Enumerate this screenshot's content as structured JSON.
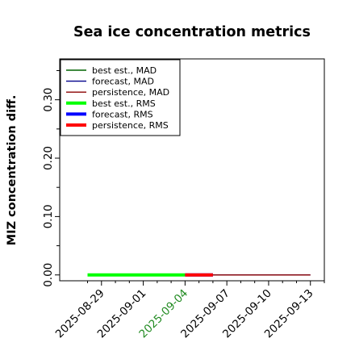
{
  "chart_data": {
    "type": "line",
    "title": "Sea ice concentration metrics",
    "ylabel": "MIZ concentration diff.",
    "xlabel": "",
    "x_ticks": [
      "2025-08-29",
      "2025-09-01",
      "2025-09-04",
      "2025-09-07",
      "2025-09-10",
      "2025-09-13"
    ],
    "x_tick_colors": [
      "#000000",
      "#000000",
      "#228b22",
      "#000000",
      "#000000",
      "#000000"
    ],
    "xlim": [
      "2025-08-26",
      "2025-09-14"
    ],
    "y_ticks": [
      "0.00",
      "0.10",
      "0.20",
      "0.30"
    ],
    "ylim": [
      -0.01,
      0.37
    ],
    "grid": false,
    "legend_position": "top-left",
    "series": [
      {
        "name": "best est., MAD",
        "color": "#006400",
        "width": 1.4,
        "points": [
          [
            "2025-08-28",
            0.0
          ],
          [
            "2025-09-04",
            0.0
          ]
        ]
      },
      {
        "name": "forecast,  MAD",
        "color": "#00008b",
        "width": 1.4,
        "points": [
          [
            "2025-09-04",
            0.0
          ],
          [
            "2025-09-13",
            0.0
          ]
        ]
      },
      {
        "name": "persistence, MAD",
        "color": "#8b0000",
        "width": 1.4,
        "points": [
          [
            "2025-09-04",
            0.0
          ],
          [
            "2025-09-13",
            0.0
          ]
        ]
      },
      {
        "name": "best est., RMS",
        "color": "#00ff00",
        "width": 4,
        "points": [
          [
            "2025-08-28",
            0.0
          ],
          [
            "2025-09-04",
            0.0
          ]
        ]
      },
      {
        "name": "forecast,  RMS",
        "color": "#0000ff",
        "width": 4,
        "points": [
          [
            "2025-09-04",
            0.0
          ],
          [
            "2025-09-06",
            0.0
          ]
        ]
      },
      {
        "name": "persistence, RMS",
        "color": "#ff0000",
        "width": 4,
        "points": [
          [
            "2025-09-04",
            0.0
          ],
          [
            "2025-09-06",
            0.0
          ]
        ]
      }
    ]
  }
}
